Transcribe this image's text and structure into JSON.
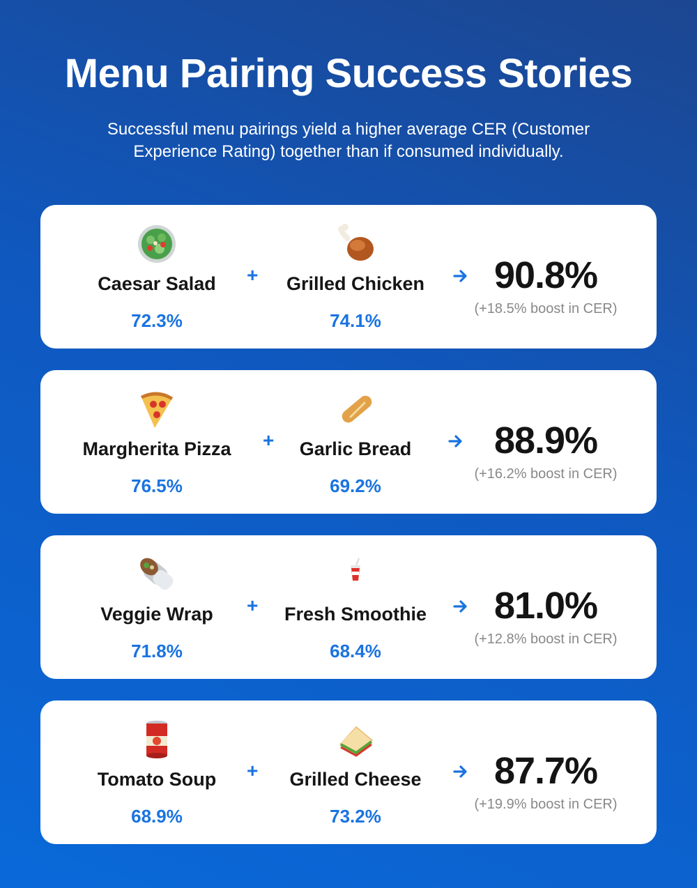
{
  "header": {
    "title": "Menu Pairing Success Stories",
    "subtitle": "Successful menu pairings yield a higher average CER (Customer Experience Rating) together than if consumed individually."
  },
  "pairings": [
    {
      "item1": {
        "name": "Caesar Salad",
        "score": "72.3%",
        "icon": "salad-icon"
      },
      "item2": {
        "name": "Grilled Chicken",
        "score": "74.1%",
        "icon": "chicken-leg-icon"
      },
      "combined": "90.8%",
      "boost": "(+18.5% boost in CER)"
    },
    {
      "item1": {
        "name": "Margherita Pizza",
        "score": "76.5%",
        "icon": "pizza-icon"
      },
      "item2": {
        "name": "Garlic Bread",
        "score": "69.2%",
        "icon": "bread-icon"
      },
      "combined": "88.9%",
      "boost": "(+16.2% boost in CER)"
    },
    {
      "item1": {
        "name": "Veggie Wrap",
        "score": "71.8%",
        "icon": "wrap-icon"
      },
      "item2": {
        "name": "Fresh Smoothie",
        "score": "68.4%",
        "icon": "cup-with-straw-icon"
      },
      "combined": "81.0%",
      "boost": "(+12.8% boost in CER)"
    },
    {
      "item1": {
        "name": "Tomato Soup",
        "score": "68.9%",
        "icon": "soup-can-icon"
      },
      "item2": {
        "name": "Grilled Cheese",
        "score": "73.2%",
        "icon": "sandwich-icon"
      },
      "combined": "87.7%",
      "boost": "(+19.9% boost in CER)"
    }
  ],
  "colors": {
    "accent": "#1a73e0",
    "text": "#151515",
    "muted": "#888888"
  }
}
